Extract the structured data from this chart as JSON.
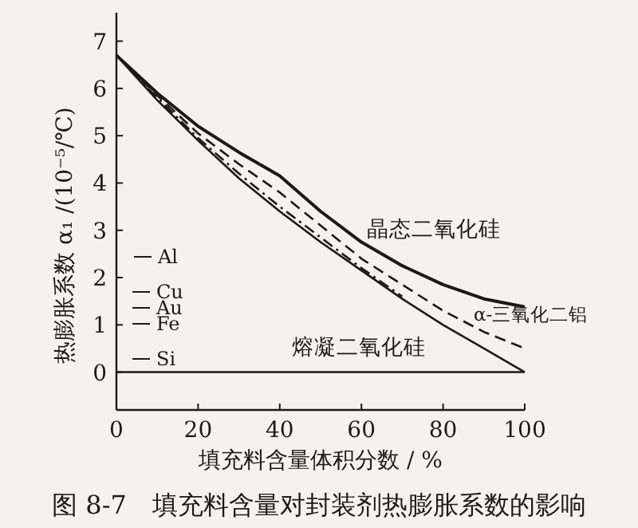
{
  "chart_data": {
    "type": "line",
    "title": "图 8-7　填充料含量对封装剂热膨胀系数的影响",
    "xlabel": "填充料含量体积分数 / %",
    "ylabel": "热膨胀系数 α₁ /(10⁻⁵/℃)",
    "x": [
      0,
      10,
      20,
      30,
      40,
      50,
      60,
      70,
      80,
      90,
      100
    ],
    "series": [
      {
        "color": "#1a1a1a",
        "line_style": "solid",
        "values": [
          6.7,
          5.9,
          5.2,
          4.65,
          4.15,
          3.4,
          2.75,
          2.25,
          1.85,
          1.55,
          1.38
        ]
      },
      {
        "color": "#1a1a1a",
        "line_style": "dashed",
        "values": [
          6.7,
          5.85,
          5.05,
          4.4,
          3.8,
          3.1,
          2.4,
          1.85,
          1.3,
          0.85,
          0.5
        ]
      },
      {
        "color": "#1a1a1a",
        "line_style": "dashdot",
        "values": [
          6.7,
          5.8,
          4.95,
          4.2,
          3.5,
          2.85,
          2.2,
          1.6,
          null,
          null,
          null
        ]
      },
      {
        "color": "#1a1a1a",
        "line_style": "solid",
        "values": [
          6.7,
          5.75,
          4.9,
          4.1,
          3.4,
          2.75,
          2.15,
          1.55,
          1.0,
          0.5,
          0
        ]
      }
    ],
    "annotations": [
      "晶态二氧化硅",
      "α-三氧化二铝",
      "熔凝二氧化硅",
      "Al",
      "Cu",
      "Au",
      "Fe",
      "Si"
    ],
    "ref_lines": [
      {
        "axis": "y",
        "value": 0,
        "color": "#1a1a1a"
      }
    ],
    "xlim": [
      0,
      100
    ],
    "ylim": [
      -0.8,
      7.6
    ],
    "xticks": [
      0,
      20,
      40,
      60,
      80,
      100
    ],
    "yticks": [
      0,
      1,
      2,
      3,
      4,
      5,
      6,
      7
    ],
    "grid": false,
    "marker": "none"
  }
}
